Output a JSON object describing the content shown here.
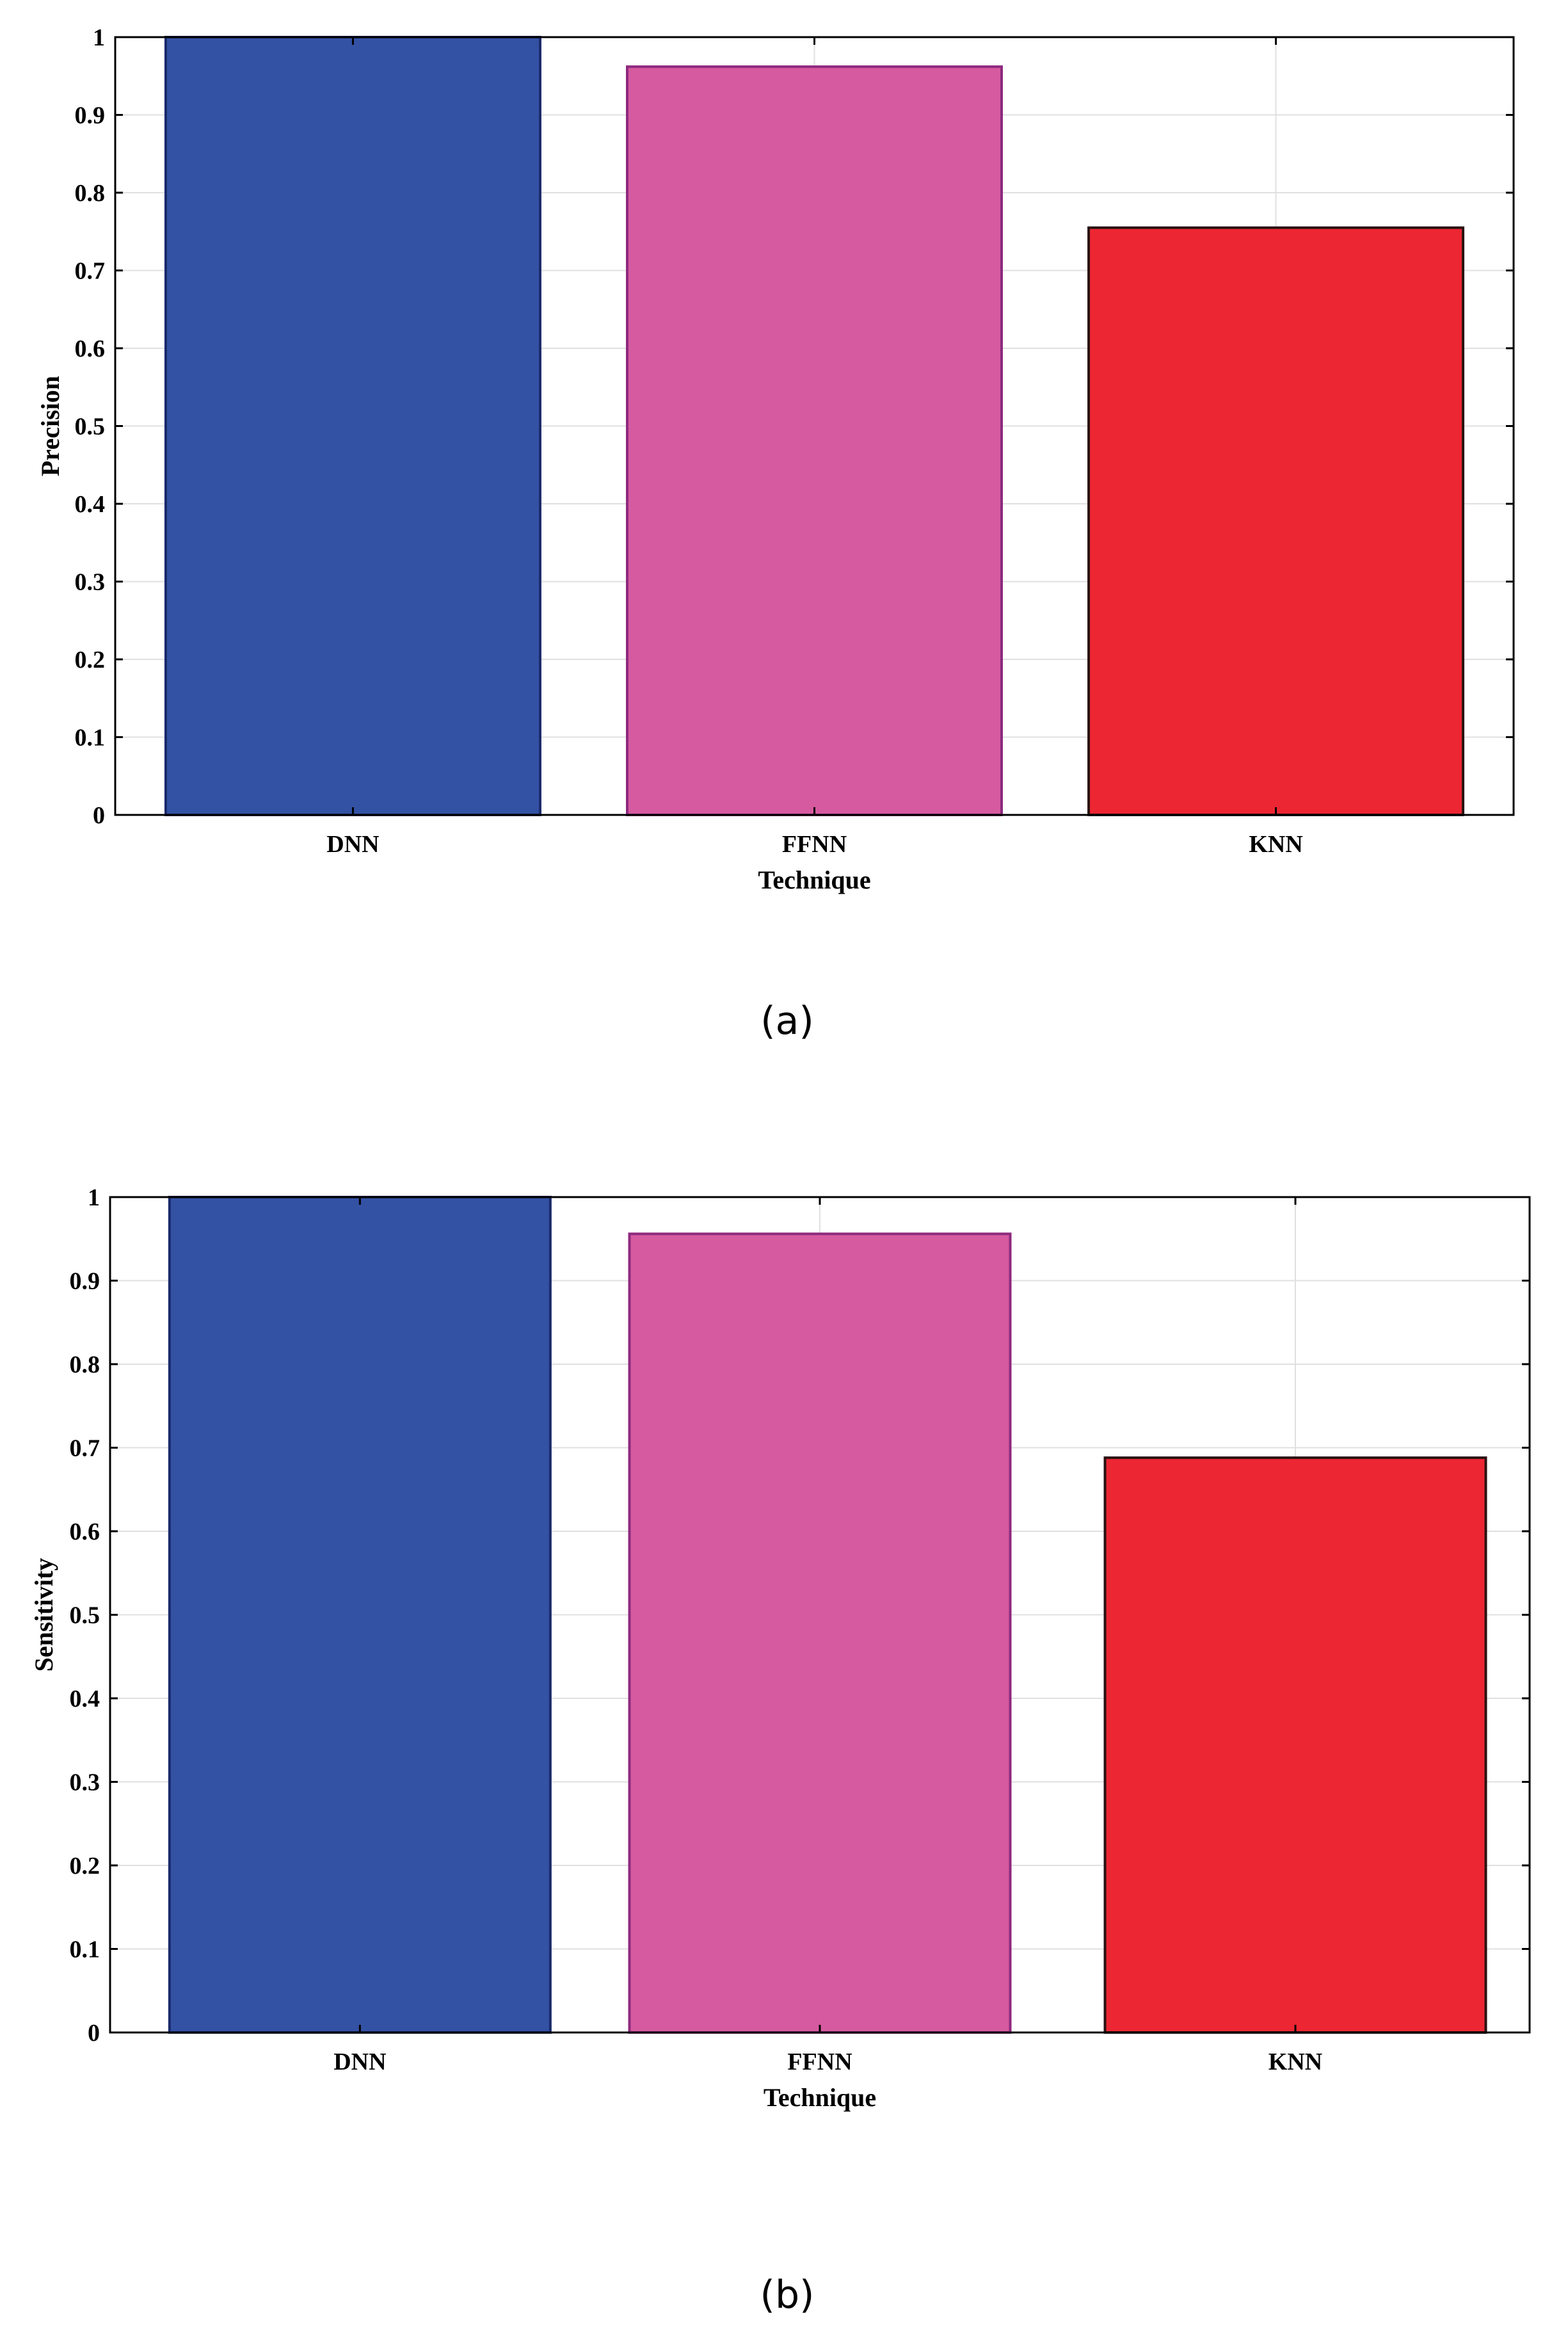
{
  "chart_data": [
    {
      "type": "bar",
      "caption": "(a)",
      "categories": [
        "DNN",
        "FFNN",
        "KNN"
      ],
      "values": [
        1.0,
        0.962,
        0.755
      ],
      "colors": [
        "#3352a4",
        "#d65aa0",
        "#ed2633"
      ],
      "edge_colors": [
        "#1a2a6c",
        "#8e2a7e",
        "#2a1212"
      ],
      "xlabel": "Technique",
      "ylabel": "Precision",
      "ylim": [
        0,
        1
      ],
      "yticks": [
        "0",
        "0.1",
        "0.2",
        "0.3",
        "0.4",
        "0.5",
        "0.6",
        "0.7",
        "0.8",
        "0.9",
        "1"
      ],
      "grid": true
    },
    {
      "type": "bar",
      "caption": "(b)",
      "categories": [
        "DNN",
        "FFNN",
        "KNN"
      ],
      "values": [
        1.0,
        0.956,
        0.688
      ],
      "colors": [
        "#3352a4",
        "#d65aa0",
        "#ed2633"
      ],
      "edge_colors": [
        "#1a2a6c",
        "#8e2a7e",
        "#2a1212"
      ],
      "xlabel": "Technique",
      "ylabel": "Sensitivity",
      "ylim": [
        0,
        1
      ],
      "yticks": [
        "0",
        "0.1",
        "0.2",
        "0.3",
        "0.4",
        "0.5",
        "0.6",
        "0.7",
        "0.8",
        "0.9",
        "1"
      ],
      "grid": true
    }
  ]
}
